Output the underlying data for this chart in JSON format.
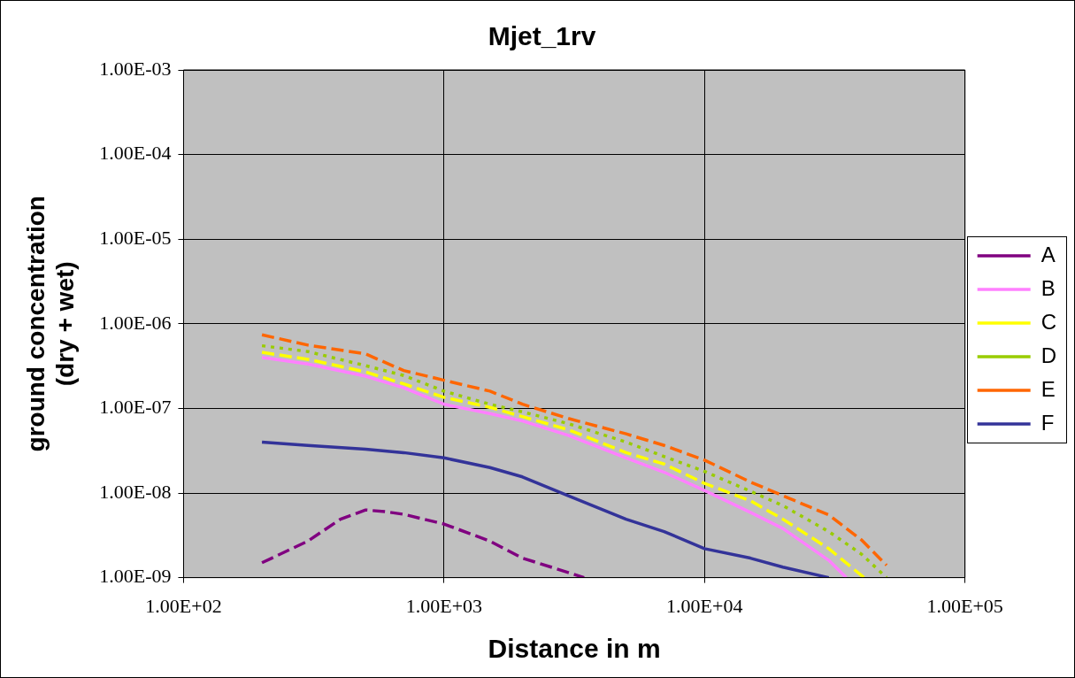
{
  "chart_data": {
    "type": "line",
    "title": "Mjet_1rv",
    "xlabel": "Distance in m",
    "ylabel": "ground concentration (dry + wet)",
    "log": "xy",
    "grid": true,
    "legend": "right",
    "marker": "none",
    "xlim": [
      100,
      100000
    ],
    "xticks": [
      {
        "value": 100,
        "label": "1.00E+02"
      },
      {
        "value": 1000,
        "label": "1.00E+03"
      },
      {
        "value": 10000,
        "label": "1.00E+04"
      },
      {
        "value": 100000,
        "label": "1.00E+05"
      }
    ],
    "ylim": [
      1e-09,
      0.001
    ],
    "yticks": [
      {
        "value": 1e-09,
        "label": "1.00E-09"
      },
      {
        "value": 1e-08,
        "label": "1.00E-08"
      },
      {
        "value": 1e-07,
        "label": "1.00E-07"
      },
      {
        "value": 1e-06,
        "label": "1.00E-06"
      },
      {
        "value": 1e-05,
        "label": "1.00E-05"
      },
      {
        "value": 0.0001,
        "label": "1.00E-04"
      },
      {
        "value": 0.001,
        "label": "1.00E-03"
      }
    ],
    "series": [
      {
        "name": "A",
        "color": "#800080",
        "line_style": "dashed",
        "x": [
          200,
          300,
          400,
          500,
          600,
          700,
          1000,
          1500,
          2000,
          3000,
          3450
        ],
        "values": [
          1.5e-09,
          2.7e-09,
          4.9e-09,
          6.3e-09,
          6e-09,
          5.6e-09,
          4.3e-09,
          2.7e-09,
          1.7e-09,
          1.15e-09,
          1e-09
        ]
      },
      {
        "name": "B",
        "color": "#ff80ff",
        "line_style": "solid",
        "x": [
          200,
          300,
          500,
          700,
          1000,
          1500,
          2000,
          3000,
          5000,
          7000,
          10000,
          15000,
          20000,
          30000,
          35000
        ],
        "values": [
          4e-07,
          3.35e-07,
          2.4e-07,
          1.75e-07,
          1.12e-07,
          8.7e-08,
          7.1e-08,
          4.8e-08,
          2.6e-08,
          1.76e-08,
          1.07e-08,
          5.9e-09,
          3.8e-09,
          1.6e-09,
          1e-09
        ]
      },
      {
        "name": "C",
        "color": "#ffff00",
        "line_style": "dashed",
        "x": [
          200,
          300,
          500,
          700,
          1000,
          1500,
          2000,
          3000,
          5000,
          7000,
          10000,
          15000,
          20000,
          30000,
          41000
        ],
        "values": [
          4.6e-07,
          3.8e-07,
          2.7e-07,
          1.95e-07,
          1.35e-07,
          1.03e-07,
          8e-08,
          5.6e-08,
          3e-08,
          2.2e-08,
          1.3e-08,
          8.1e-09,
          4.9e-09,
          2.2e-09,
          1e-09
        ]
      },
      {
        "name": "D",
        "color": "#99cc00",
        "line_style": "dotted",
        "x": [
          200,
          300,
          500,
          700,
          1000,
          1500,
          2000,
          3000,
          5000,
          7000,
          10000,
          15000,
          20000,
          30000,
          40000,
          50000
        ],
        "values": [
          5.5e-07,
          4.7e-07,
          3.2e-07,
          2.45e-07,
          1.6e-07,
          1.12e-07,
          9.1e-08,
          6.6e-08,
          4e-08,
          2.7e-08,
          1.8e-08,
          1.05e-08,
          7.1e-09,
          3.5e-09,
          1.9e-09,
          1e-09
        ]
      },
      {
        "name": "E",
        "color": "#ff6600",
        "line_style": "dashed",
        "x": [
          200,
          300,
          500,
          700,
          1000,
          1500,
          2000,
          3000,
          5000,
          7000,
          10000,
          15000,
          20000,
          30000,
          40000,
          50000
        ],
        "values": [
          7.4e-07,
          5.6e-07,
          4.4e-07,
          2.8e-07,
          2.15e-07,
          1.6e-07,
          1.12e-07,
          7.6e-08,
          5e-08,
          3.65e-08,
          2.45e-08,
          1.35e-08,
          9.3e-09,
          5.5e-09,
          2.8e-09,
          1.4e-09
        ]
      },
      {
        "name": "F",
        "color": "#333399",
        "line_style": "solid",
        "x": [
          200,
          300,
          500,
          700,
          1000,
          1500,
          2000,
          3000,
          5000,
          7000,
          10000,
          15000,
          20000,
          30000
        ],
        "values": [
          4e-08,
          3.65e-08,
          3.3e-08,
          3e-08,
          2.6e-08,
          2e-08,
          1.55e-08,
          9.3e-09,
          4.9e-09,
          3.5e-09,
          2.2e-09,
          1.7e-09,
          1.33e-09,
          1e-09
        ]
      }
    ]
  }
}
